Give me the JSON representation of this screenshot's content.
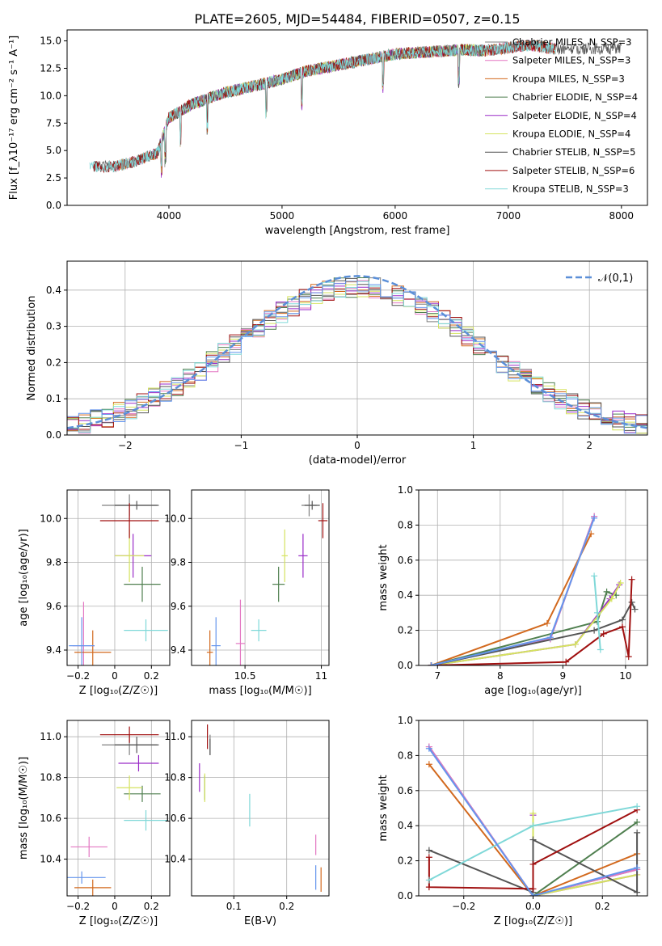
{
  "figure_title": "PLATE=2605, MJD=54484, FIBERID=0507, z=0.15",
  "colors": {
    "Chabrier MILES": "#808080",
    "Salpeter MILES": "#e377c2",
    "Kroupa MILES": "#d2691e",
    "Chabrier ELODIE": "#4f7f4f",
    "Salpeter ELODIE": "#9a2cc8",
    "Kroupa ELODIE": "#d5e35f",
    "Chabrier STELIB": "#555555",
    "Salpeter STELIB": "#a01010",
    "Kroupa STELIB": "#7fd8d8"
  },
  "chart_data": [
    {
      "type": "line",
      "title": "",
      "xlabel": "wavelength [Angstrom, rest frame]",
      "ylabel": "Flux [f_λ10⁻¹⁷ erg cm⁻² s⁻¹ A⁻¹]",
      "xlim": [
        3100,
        8230
      ],
      "ylim": [
        0,
        16
      ],
      "xticks": [
        4000,
        5000,
        6000,
        7000,
        8000
      ],
      "yticks": [
        0.0,
        2.5,
        5.0,
        7.5,
        10.0,
        12.5,
        15.0
      ],
      "legend": "top-right",
      "spectrum_shape": {
        "x": [
          3300,
          3500,
          3700,
          3900,
          4000,
          4200,
          4500,
          4800,
          5000,
          5200,
          5500,
          5800,
          6000,
          6300,
          6600,
          6800,
          7000,
          7200,
          7400
        ],
        "y": [
          3.6,
          3.5,
          4.0,
          4.8,
          8.0,
          9.2,
          10.3,
          11.0,
          11.5,
          12.2,
          12.8,
          13.4,
          13.8,
          14.0,
          14.2,
          14.1,
          14.4,
          14.6,
          14.3
        ]
      },
      "series": [
        {
          "name": "Chabrier MILES, N_SSP=3",
          "start": 3540,
          "end": 7420
        },
        {
          "name": "Salpeter MILES, N_SSP=3",
          "start": 3540,
          "end": 7420
        },
        {
          "name": "Kroupa MILES, N_SSP=3",
          "start": 3540,
          "end": 7420
        },
        {
          "name": "Chabrier ELODIE, N_SSP=4",
          "start": 3900,
          "end": 6800
        },
        {
          "name": "Salpeter ELODIE, N_SSP=4",
          "start": 3900,
          "end": 6800
        },
        {
          "name": "Kroupa ELODIE, N_SSP=4",
          "start": 3900,
          "end": 6800
        },
        {
          "name": "Chabrier STELIB, N_SSP=5",
          "start": 3330,
          "end": 8000
        },
        {
          "name": "Salpeter STELIB, N_SSP=6",
          "start": 3330,
          "end": 7420
        },
        {
          "name": "Kroupa STELIB, N_SSP=3",
          "start": 3300,
          "end": 7420
        }
      ]
    },
    {
      "type": "line",
      "xlabel": "(data-model)/error",
      "ylabel": "Normed distribution",
      "xlim": [
        -2.5,
        2.5
      ],
      "ylim": [
        0,
        0.48
      ],
      "xticks": [
        -2,
        -1,
        0,
        1,
        2
      ],
      "yticks": [
        0.0,
        0.1,
        0.2,
        0.3,
        0.4
      ],
      "legend": "top-right",
      "reference_curve": {
        "name": "𝒩(0,1)",
        "style": "dashed"
      },
      "bin_width": 0.1
    },
    {
      "type": "scatter",
      "xlabel": "Z [log₁₀(Z/Z☉)]",
      "ylabel": "age  [log₁₀(age/yr)]",
      "xlim": [
        -0.26,
        0.3
      ],
      "ylim": [
        9.33,
        10.13
      ],
      "xticks": [
        -0.2,
        0.0,
        0.2
      ],
      "yticks": [
        9.4,
        9.6,
        9.8,
        10.0
      ],
      "points": [
        {
          "name": "Chabrier MILES",
          "x": 0.08,
          "y": 10.06,
          "xerr": 0.15,
          "yerr": 0.05
        },
        {
          "name": "Salpeter MILES",
          "x": -0.17,
          "y": 9.42,
          "xerr": 0.06,
          "yerr": 0.2
        },
        {
          "name": "Kroupa MILES",
          "x": -0.12,
          "y": 9.39,
          "xerr": 0.1,
          "yerr": 0.1
        },
        {
          "name": "Chabrier ELODIE",
          "x": 0.15,
          "y": 9.7,
          "xerr": 0.1,
          "yerr": 0.08
        },
        {
          "name": "Salpeter ELODIE",
          "x": 0.1,
          "y": 9.83,
          "xerr": 0.1,
          "yerr": 0.1
        },
        {
          "name": "Kroupa ELODIE",
          "x": 0.08,
          "y": 9.83,
          "xerr": 0.08,
          "yerr": 0.12
        },
        {
          "name": "Chabrier STELIB",
          "x": 0.12,
          "y": 10.06,
          "xerr": 0.12,
          "yerr": 0.02
        },
        {
          "name": "Salpeter STELIB",
          "x": 0.08,
          "y": 9.99,
          "xerr": 0.16,
          "yerr": 0.08
        },
        {
          "name": "Kroupa STELIB",
          "x": 0.17,
          "y": 9.49,
          "xerr": 0.12,
          "yerr": 0.05
        },
        {
          "name": "Blue",
          "x": -0.18,
          "y": 9.42,
          "xerr": 0.07,
          "yerr": 0.13
        }
      ]
    },
    {
      "type": "scatter",
      "xlabel": "mass [log₁₀(M/M☉)]",
      "ylabel": "",
      "xlim": [
        10.15,
        11.05
      ],
      "ylim": [
        9.33,
        10.13
      ],
      "xticks": [
        10.5,
        11.0
      ],
      "yticks": [
        9.4,
        9.6,
        9.8,
        10.0
      ],
      "points": [
        {
          "name": "Chabrier MILES",
          "x": 10.92,
          "y": 10.06,
          "xerr": 0.05,
          "yerr": 0.05
        },
        {
          "name": "Salpeter MILES",
          "x": 10.47,
          "y": 9.43,
          "xerr": 0.03,
          "yerr": 0.2
        },
        {
          "name": "Kroupa MILES",
          "x": 10.27,
          "y": 9.39,
          "xerr": 0.02,
          "yerr": 0.1
        },
        {
          "name": "Chabrier ELODIE",
          "x": 10.72,
          "y": 9.7,
          "xerr": 0.04,
          "yerr": 0.08
        },
        {
          "name": "Salpeter ELODIE",
          "x": 10.88,
          "y": 9.83,
          "xerr": 0.03,
          "yerr": 0.1
        },
        {
          "name": "Kroupa ELODIE",
          "x": 10.76,
          "y": 9.83,
          "xerr": 0.02,
          "yerr": 0.12
        },
        {
          "name": "Chabrier STELIB",
          "x": 10.94,
          "y": 10.06,
          "xerr": 0.05,
          "yerr": 0.02
        },
        {
          "name": "Salpeter STELIB",
          "x": 11.01,
          "y": 9.99,
          "xerr": 0.03,
          "yerr": 0.08
        },
        {
          "name": "Kroupa STELIB",
          "x": 10.59,
          "y": 9.49,
          "xerr": 0.05,
          "yerr": 0.05
        },
        {
          "name": "Blue",
          "x": 10.31,
          "y": 9.42,
          "xerr": 0.03,
          "yerr": 0.13
        }
      ]
    },
    {
      "type": "line",
      "xlabel": "age  [log₁₀(age/yr)]",
      "ylabel": "mass weight",
      "xlim": [
        6.7,
        10.35
      ],
      "ylim": [
        0,
        1
      ],
      "xticks": [
        7,
        8,
        9,
        10
      ],
      "yticks": [
        0.0,
        0.2,
        0.4,
        0.6,
        0.8,
        1.0
      ],
      "series": [
        {
          "name": "Chabrier MILES",
          "x": [
            6.9,
            8.8,
            9.5
          ],
          "y": [
            0.0,
            0.15,
            0.85
          ]
        },
        {
          "name": "Salpeter MILES",
          "x": [
            6.9,
            8.8,
            9.5
          ],
          "y": [
            0.0,
            0.15,
            0.85
          ]
        },
        {
          "name": "Kroupa MILES",
          "x": [
            6.9,
            8.75,
            9.45
          ],
          "y": [
            0.0,
            0.24,
            0.75
          ]
        },
        {
          "name": "Chabrier ELODIE",
          "x": [
            6.9,
            9.55,
            9.7,
            9.85
          ],
          "y": [
            0.0,
            0.25,
            0.42,
            0.4
          ]
        },
        {
          "name": "Salpeter ELODIE",
          "x": [
            6.9,
            9.2,
            9.75,
            9.9
          ],
          "y": [
            0.0,
            0.12,
            0.38,
            0.46
          ]
        },
        {
          "name": "Kroupa ELODIE",
          "x": [
            6.9,
            9.2,
            9.78,
            9.92
          ],
          "y": [
            0.0,
            0.12,
            0.38,
            0.47
          ]
        },
        {
          "name": "Chabrier STELIB",
          "x": [
            6.9,
            9.5,
            9.95,
            10.1,
            10.15
          ],
          "y": [
            0.0,
            0.2,
            0.26,
            0.36,
            0.32
          ]
        },
        {
          "name": "Salpeter STELIB",
          "x": [
            6.9,
            9.05,
            9.65,
            9.95,
            10.05,
            10.1
          ],
          "y": [
            0.0,
            0.02,
            0.18,
            0.22,
            0.05,
            0.49
          ]
        },
        {
          "name": "Kroupa STELIB",
          "x": [
            9.5,
            9.55,
            9.6
          ],
          "y": [
            0.51,
            0.3,
            0.09
          ]
        },
        {
          "name": "Blue",
          "x": [
            6.9,
            8.8,
            9.5
          ],
          "y": [
            0.0,
            0.16,
            0.84
          ]
        }
      ]
    },
    {
      "type": "scatter",
      "xlabel": "Z [log₁₀(Z/Z☉)]",
      "ylabel": "mass [log₁₀(M/M☉)]",
      "xlim": [
        -0.26,
        0.3
      ],
      "ylim": [
        10.22,
        11.08
      ],
      "xticks": [
        -0.2,
        0.0,
        0.2
      ],
      "yticks": [
        10.4,
        10.6,
        10.8,
        11.0
      ],
      "points": [
        {
          "name": "Chabrier MILES",
          "x": 0.08,
          "y": 10.96,
          "xerr": 0.15,
          "yerr": 0.05
        },
        {
          "name": "Salpeter MILES",
          "x": -0.14,
          "y": 10.46,
          "xerr": 0.1,
          "yerr": 0.05
        },
        {
          "name": "Kroupa MILES",
          "x": -0.12,
          "y": 10.26,
          "xerr": 0.1,
          "yerr": 0.04
        },
        {
          "name": "Chabrier ELODIE",
          "x": 0.15,
          "y": 10.72,
          "xerr": 0.1,
          "yerr": 0.04
        },
        {
          "name": "Salpeter ELODIE",
          "x": 0.13,
          "y": 10.87,
          "xerr": 0.11,
          "yerr": 0.04
        },
        {
          "name": "Kroupa ELODIE",
          "x": 0.08,
          "y": 10.75,
          "xerr": 0.07,
          "yerr": 0.06
        },
        {
          "name": "Chabrier STELIB",
          "x": 0.12,
          "y": 10.96,
          "xerr": 0.12,
          "yerr": 0.04
        },
        {
          "name": "Salpeter STELIB",
          "x": 0.08,
          "y": 11.01,
          "xerr": 0.16,
          "yerr": 0.04
        },
        {
          "name": "Kroupa STELIB",
          "x": 0.17,
          "y": 10.59,
          "xerr": 0.12,
          "yerr": 0.05
        },
        {
          "name": "Blue",
          "x": -0.18,
          "y": 10.31,
          "xerr": 0.13,
          "yerr": 0.03
        }
      ]
    },
    {
      "type": "scatter",
      "xlabel": "E(B-V)",
      "ylabel": "",
      "xlim": [
        0.02,
        0.28
      ],
      "ylim": [
        10.22,
        11.08
      ],
      "xticks": [
        0.1,
        0.2
      ],
      "yticks": [
        10.4,
        10.6,
        10.8,
        11.0
      ],
      "points": [
        {
          "name": "Chabrier MILES",
          "x": 0.055,
          "y": 10.96,
          "xerr": 0,
          "yerr": 0.05
        },
        {
          "name": "Salpeter MILES",
          "x": 0.255,
          "y": 10.47,
          "xerr": 0,
          "yerr": 0.05
        },
        {
          "name": "Kroupa MILES",
          "x": 0.265,
          "y": 10.3,
          "xerr": 0,
          "yerr": 0.06
        },
        {
          "name": "Chabrier ELODIE",
          "x": 0.045,
          "y": 10.75,
          "xerr": 0,
          "yerr": 0.06
        },
        {
          "name": "Salpeter ELODIE",
          "x": 0.035,
          "y": 10.8,
          "xerr": 0,
          "yerr": 0.07
        },
        {
          "name": "Kroupa ELODIE",
          "x": 0.045,
          "y": 10.75,
          "xerr": 0,
          "yerr": 0.07
        },
        {
          "name": "Chabrier STELIB",
          "x": 0.055,
          "y": 10.95,
          "xerr": 0,
          "yerr": 0.04
        },
        {
          "name": "Salpeter STELIB",
          "x": 0.05,
          "y": 11.0,
          "xerr": 0,
          "yerr": 0.06
        },
        {
          "name": "Kroupa STELIB",
          "x": 0.13,
          "y": 10.64,
          "xerr": 0,
          "yerr": 0.08
        },
        {
          "name": "Blue",
          "x": 0.255,
          "y": 10.31,
          "xerr": 0,
          "yerr": 0.06
        }
      ]
    },
    {
      "type": "line",
      "xlabel": "Z [log₁₀(Z/Z☉)]",
      "ylabel": "mass weight",
      "xlim": [
        -0.33,
        0.33
      ],
      "ylim": [
        0,
        1
      ],
      "xticks": [
        -0.2,
        0.0,
        0.2
      ],
      "yticks": [
        0.0,
        0.2,
        0.4,
        0.6,
        0.8,
        1.0
      ],
      "series": [
        {
          "name": "Chabrier MILES",
          "x": [
            -0.3,
            0.0,
            0.3
          ],
          "y": [
            0.85,
            0.0,
            0.15
          ]
        },
        {
          "name": "Salpeter MILES",
          "x": [
            -0.3,
            0.0,
            0.3
          ],
          "y": [
            0.85,
            0.0,
            0.15
          ]
        },
        {
          "name": "Kroupa MILES",
          "x": [
            -0.3,
            0.0,
            0.3
          ],
          "y": [
            0.75,
            0.0,
            0.24
          ]
        },
        {
          "name": "Chabrier ELODIE",
          "x": [
            0.0,
            0.0,
            0.3
          ],
          "y": [
            0.4,
            0.0,
            0.42
          ]
        },
        {
          "name": "Salpeter ELODIE",
          "x": [
            0.0,
            0.0,
            0.3
          ],
          "y": [
            0.46,
            0.0,
            0.12
          ]
        },
        {
          "name": "Kroupa ELODIE",
          "x": [
            0.0,
            0.0,
            0.3
          ],
          "y": [
            0.47,
            0.0,
            0.12
          ]
        },
        {
          "name": "Chabrier STELIB",
          "x": [
            -0.3,
            0.0,
            0.0,
            0.3,
            0.3
          ],
          "y": [
            0.26,
            0.02,
            0.32,
            0.02,
            0.36
          ]
        },
        {
          "name": "Salpeter STELIB",
          "x": [
            -0.3,
            -0.3,
            0.0,
            0.0,
            0.3
          ],
          "y": [
            0.22,
            0.05,
            0.04,
            0.18,
            0.49
          ]
        },
        {
          "name": "Kroupa STELIB",
          "x": [
            -0.3,
            0.0,
            0.3
          ],
          "y": [
            0.09,
            0.4,
            0.51
          ]
        },
        {
          "name": "Blue",
          "x": [
            -0.3,
            0.0,
            0.3
          ],
          "y": [
            0.84,
            0.0,
            0.16
          ]
        }
      ]
    }
  ],
  "extra_colors": {
    "Blue": "#6495ed"
  }
}
